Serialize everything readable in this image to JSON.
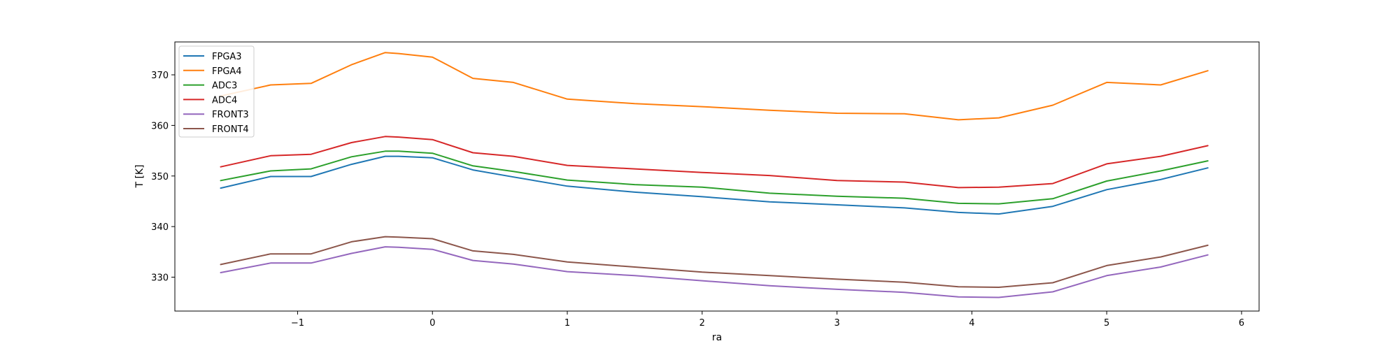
{
  "chart_data": {
    "type": "line",
    "title": "",
    "xlabel": "ra",
    "ylabel": "T [K]",
    "xlim": [
      -1.91,
      6.13
    ],
    "ylim": [
      323.3,
      376.5
    ],
    "xticks": [
      -1,
      0,
      1,
      2,
      3,
      4,
      5,
      6
    ],
    "xtick_labels": [
      "−1",
      "0",
      "1",
      "2",
      "3",
      "4",
      "5",
      "6"
    ],
    "yticks": [
      330,
      340,
      350,
      360,
      370
    ],
    "ytick_labels": [
      "330",
      "340",
      "350",
      "360",
      "370"
    ],
    "grid": false,
    "legend_placement": "upper-left",
    "x": [
      -1.57,
      -1.2,
      -0.9,
      -0.6,
      -0.35,
      -0.25,
      0.0,
      0.3,
      0.6,
      1.0,
      1.5,
      2.0,
      2.5,
      3.0,
      3.5,
      3.9,
      4.2,
      4.6,
      5.0,
      5.4,
      5.75
    ],
    "series": [
      {
        "name": "FPGA3",
        "color": "#1f77b4",
        "values": [
          347.6,
          349.9,
          349.9,
          352.3,
          353.9,
          353.9,
          353.6,
          351.2,
          349.8,
          348.0,
          346.8,
          345.9,
          344.9,
          344.3,
          343.7,
          342.8,
          342.5,
          344.0,
          347.3,
          349.3,
          351.6
        ]
      },
      {
        "name": "FPGA4",
        "color": "#ff7f0e",
        "values": [
          365.8,
          368.0,
          368.3,
          372.0,
          374.4,
          374.2,
          373.5,
          369.3,
          368.5,
          365.2,
          364.3,
          363.7,
          363.0,
          362.4,
          362.3,
          361.1,
          361.5,
          364.0,
          368.5,
          368.0,
          370.8
        ]
      },
      {
        "name": "ADC3",
        "color": "#2ca02c",
        "values": [
          349.1,
          351.0,
          351.4,
          353.8,
          354.9,
          354.9,
          354.5,
          352.0,
          350.9,
          349.2,
          348.3,
          347.8,
          346.6,
          346.0,
          345.6,
          344.6,
          344.5,
          345.5,
          349.0,
          351.0,
          353.0
        ]
      },
      {
        "name": "ADC4",
        "color": "#d62728",
        "values": [
          351.8,
          354.0,
          354.3,
          356.6,
          357.8,
          357.7,
          357.2,
          354.6,
          353.9,
          352.1,
          351.4,
          350.7,
          350.1,
          349.1,
          348.8,
          347.7,
          347.8,
          348.5,
          352.4,
          353.9,
          356.0
        ]
      },
      {
        "name": "FRONT3",
        "color": "#9467bd",
        "values": [
          330.9,
          332.8,
          332.8,
          334.7,
          336.0,
          335.9,
          335.5,
          333.3,
          332.6,
          331.1,
          330.3,
          329.3,
          328.3,
          327.6,
          327.0,
          326.1,
          326.0,
          327.1,
          330.3,
          332.0,
          334.4
        ]
      },
      {
        "name": "FRONT4",
        "color": "#8c564b",
        "values": [
          332.5,
          334.6,
          334.6,
          337.0,
          338.0,
          337.9,
          337.6,
          335.2,
          334.5,
          333.0,
          332.0,
          331.0,
          330.3,
          329.6,
          329.0,
          328.1,
          328.0,
          328.9,
          332.3,
          334.0,
          336.3
        ]
      }
    ]
  }
}
